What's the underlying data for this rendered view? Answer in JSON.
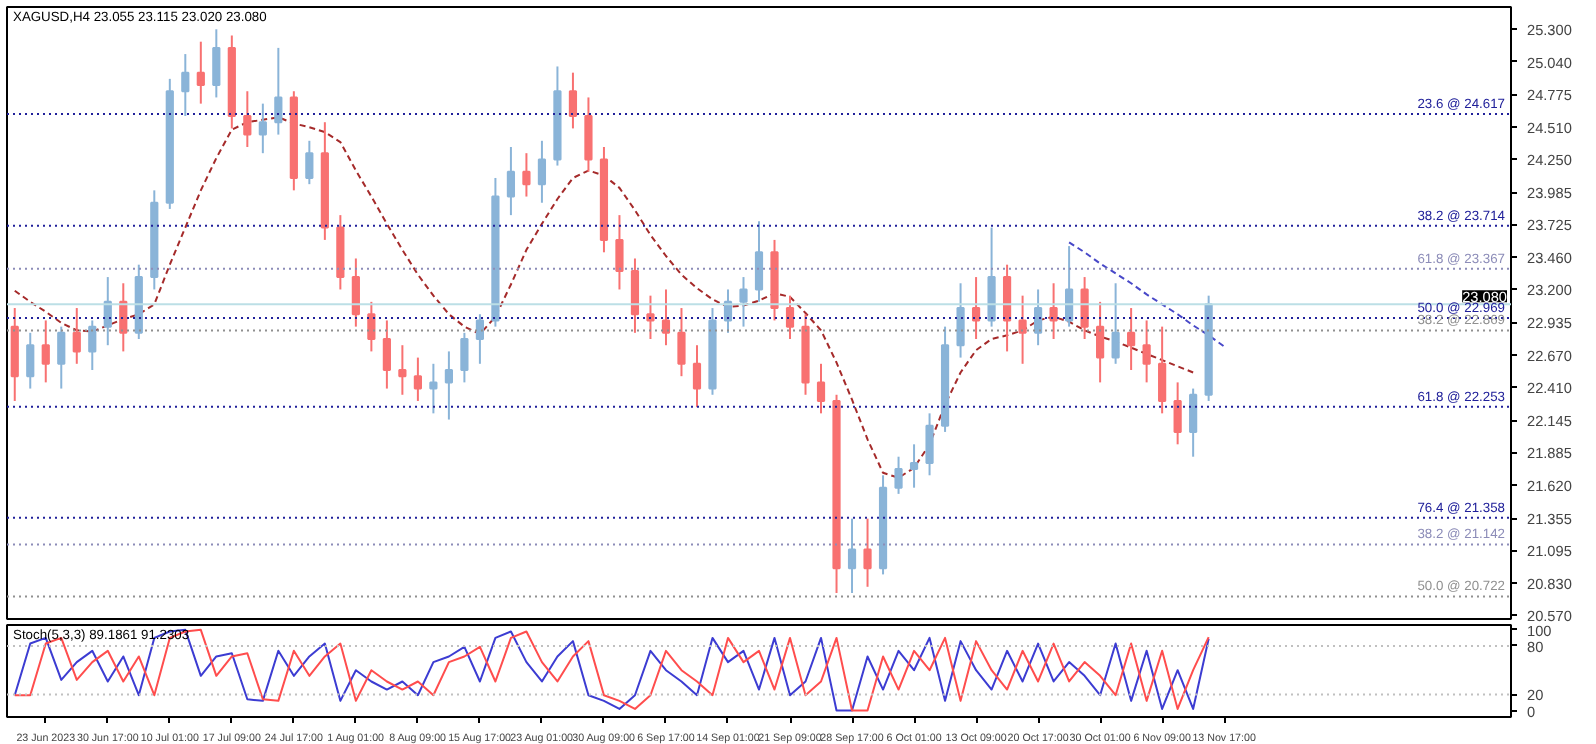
{
  "chart_data": [
    {
      "type": "candlestick",
      "title": "XAGUSD,H4 23.055 23.115 23.020 23.080",
      "categories": [
        null,
        null,
        null,
        null,
        null,
        null,
        null,
        null,
        null,
        null,
        null,
        null,
        null,
        null,
        null,
        null,
        null,
        null,
        null,
        null,
        null,
        null,
        null,
        null,
        null,
        null,
        null,
        null,
        null,
        null,
        null,
        null,
        null,
        null,
        null,
        null,
        null,
        null,
        null,
        null,
        null,
        null,
        null,
        null,
        null,
        null,
        null,
        null,
        null,
        null,
        null,
        null,
        null,
        null,
        null,
        null,
        null,
        null,
        null,
        null,
        null,
        null,
        null,
        null,
        null,
        null,
        null,
        null,
        null,
        null,
        null,
        null,
        null,
        null,
        null,
        null,
        null,
        null,
        null,
        null,
        null,
        null,
        null,
        null,
        null,
        null,
        null,
        null,
        null,
        null,
        null,
        null,
        null,
        null,
        null,
        null,
        null
      ],
      "ohlc": [
        [
          22.9,
          23.05,
          22.3,
          22.5
        ],
        [
          22.5,
          22.85,
          22.4,
          22.75
        ],
        [
          22.75,
          22.95,
          22.45,
          22.6
        ],
        [
          22.6,
          22.9,
          22.4,
          22.85
        ],
        [
          22.85,
          23.05,
          22.6,
          22.7
        ],
        [
          22.7,
          22.95,
          22.55,
          22.9
        ],
        [
          22.9,
          23.3,
          22.75,
          23.1
        ],
        [
          23.1,
          23.25,
          22.7,
          22.85
        ],
        [
          22.85,
          23.4,
          22.8,
          23.3
        ],
        [
          23.3,
          24.0,
          23.2,
          23.9
        ],
        [
          23.9,
          24.9,
          23.85,
          24.8
        ],
        [
          24.8,
          25.1,
          24.6,
          24.95
        ],
        [
          24.95,
          25.2,
          24.7,
          24.85
        ],
        [
          24.85,
          25.3,
          24.75,
          25.15
        ],
        [
          25.15,
          25.25,
          24.5,
          24.6
        ],
        [
          24.6,
          24.8,
          24.35,
          24.45
        ],
        [
          24.45,
          24.7,
          24.3,
          24.55
        ],
        [
          24.55,
          25.15,
          24.45,
          24.75
        ],
        [
          24.75,
          24.8,
          24.0,
          24.1
        ],
        [
          24.1,
          24.4,
          24.05,
          24.3
        ],
        [
          24.3,
          24.55,
          23.6,
          23.7
        ],
        [
          23.7,
          23.8,
          23.2,
          23.3
        ],
        [
          23.3,
          23.45,
          22.9,
          23.0
        ],
        [
          23.0,
          23.1,
          22.7,
          22.8
        ],
        [
          22.8,
          22.95,
          22.4,
          22.55
        ],
        [
          22.55,
          22.75,
          22.35,
          22.5
        ],
        [
          22.5,
          22.65,
          22.3,
          22.4
        ],
        [
          22.4,
          22.6,
          22.2,
          22.45
        ],
        [
          22.45,
          22.7,
          22.15,
          22.55
        ],
        [
          22.55,
          22.85,
          22.45,
          22.8
        ],
        [
          22.8,
          23.0,
          22.6,
          22.95
        ],
        [
          22.95,
          24.1,
          22.9,
          23.95
        ],
        [
          23.95,
          24.35,
          23.8,
          24.15
        ],
        [
          24.15,
          24.3,
          23.95,
          24.05
        ],
        [
          24.05,
          24.4,
          23.9,
          24.25
        ],
        [
          24.25,
          25.0,
          24.2,
          24.8
        ],
        [
          24.8,
          24.95,
          24.5,
          24.6
        ],
        [
          24.6,
          24.75,
          24.15,
          24.25
        ],
        [
          24.25,
          24.35,
          23.5,
          23.6
        ],
        [
          23.6,
          23.8,
          23.2,
          23.35
        ],
        [
          23.35,
          23.45,
          22.85,
          23.0
        ],
        [
          23.0,
          23.15,
          22.8,
          22.95
        ],
        [
          22.95,
          23.2,
          22.75,
          22.85
        ],
        [
          22.85,
          23.05,
          22.5,
          22.6
        ],
        [
          22.6,
          22.75,
          22.25,
          22.4
        ],
        [
          22.4,
          23.05,
          22.35,
          22.95
        ],
        [
          22.95,
          23.2,
          22.85,
          23.1
        ],
        [
          23.1,
          23.3,
          22.9,
          23.2
        ],
        [
          23.2,
          23.75,
          23.1,
          23.5
        ],
        [
          23.5,
          23.6,
          22.95,
          23.05
        ],
        [
          23.05,
          23.15,
          22.8,
          22.9
        ],
        [
          22.9,
          23.0,
          22.35,
          22.45
        ],
        [
          22.45,
          22.6,
          22.2,
          22.3
        ],
        [
          22.3,
          22.35,
          20.75,
          20.95
        ],
        [
          20.95,
          21.35,
          20.75,
          21.1
        ],
        [
          21.1,
          21.35,
          20.8,
          20.95
        ],
        [
          20.95,
          21.7,
          20.9,
          21.6
        ],
        [
          21.6,
          21.85,
          21.55,
          21.75
        ],
        [
          21.75,
          21.95,
          21.6,
          21.8
        ],
        [
          21.8,
          22.2,
          21.7,
          22.1
        ],
        [
          22.1,
          22.9,
          22.05,
          22.75
        ],
        [
          22.75,
          23.25,
          22.65,
          23.05
        ],
        [
          23.05,
          23.3,
          22.8,
          22.95
        ],
        [
          22.95,
          23.7,
          22.9,
          23.3
        ],
        [
          23.3,
          23.4,
          22.7,
          22.95
        ],
        [
          22.95,
          23.15,
          22.6,
          22.85
        ],
        [
          22.85,
          23.2,
          22.75,
          23.05
        ],
        [
          23.05,
          23.25,
          22.8,
          22.95
        ],
        [
          22.95,
          23.55,
          22.9,
          23.2
        ],
        [
          23.2,
          23.3,
          22.8,
          22.9
        ],
        [
          22.9,
          23.1,
          22.45,
          22.65
        ],
        [
          22.65,
          23.25,
          22.6,
          22.85
        ],
        [
          22.85,
          23.05,
          22.55,
          22.75
        ],
        [
          22.75,
          22.95,
          22.45,
          22.6
        ],
        [
          22.6,
          22.9,
          22.2,
          22.3
        ],
        [
          22.3,
          22.45,
          21.95,
          22.05
        ],
        [
          22.05,
          22.4,
          21.85,
          22.35
        ],
        [
          22.35,
          23.15,
          22.3,
          23.08
        ],
        null,
        null,
        null,
        null,
        null,
        null,
        null,
        null,
        null,
        null,
        null,
        null,
        null,
        null,
        null,
        null,
        null,
        null,
        null
      ],
      "colors": [
        "#f87171",
        "#8ab4d8",
        "#f87171",
        "#8ab4d8",
        "#f87171",
        "#8ab4d8",
        "#8ab4d8",
        "#f87171",
        "#8ab4d8",
        "#8ab4d8",
        "#8ab4d8",
        "#8ab4d8",
        "#f87171",
        "#8ab4d8",
        "#f87171",
        "#f87171",
        "#8ab4d8",
        "#8ab4d8",
        "#f87171",
        "#8ab4d8",
        "#f87171",
        "#f87171",
        "#f87171",
        "#f87171",
        "#f87171",
        "#f87171",
        "#f87171",
        "#8ab4d8",
        "#8ab4d8",
        "#8ab4d8",
        "#8ab4d8",
        "#8ab4d8",
        "#8ab4d8",
        "#f87171",
        "#8ab4d8",
        "#8ab4d8",
        "#f87171",
        "#f87171",
        "#f87171",
        "#f87171",
        "#f87171",
        "#f87171",
        "#f87171",
        "#f87171",
        "#f87171",
        "#8ab4d8",
        "#8ab4d8",
        "#8ab4d8",
        "#8ab4d8",
        "#f87171",
        "#f87171",
        "#f87171",
        "#f87171",
        "#f87171",
        "#8ab4d8",
        "#f87171",
        "#8ab4d8",
        "#8ab4d8",
        "#8ab4d8",
        "#8ab4d8",
        "#8ab4d8",
        "#8ab4d8",
        "#f87171",
        "#8ab4d8",
        "#f87171",
        "#f87171",
        "#8ab4d8",
        "#f87171",
        "#8ab4d8",
        "#f87171",
        "#f87171",
        "#8ab4d8",
        "#f87171",
        "#f87171",
        "#f87171",
        "#f87171",
        "#8ab4d8",
        "#8ab4d8",
        null,
        null,
        null,
        null,
        null,
        null,
        null,
        null,
        null,
        null,
        null,
        null,
        null,
        null,
        null,
        null,
        null,
        null,
        null
      ],
      "series": [
        {
          "type": "line",
          "color": "#a52a2a",
          "line_style": "dashed",
          "values": [
            23.19,
            23.1,
            23.02,
            22.93,
            22.87,
            22.86,
            22.91,
            22.96,
            23.0,
            23.08,
            23.4,
            23.7,
            24.0,
            24.26,
            24.49,
            24.55,
            24.57,
            24.59,
            24.54,
            24.51,
            24.47,
            24.39,
            24.16,
            23.95,
            23.73,
            23.52,
            23.32,
            23.15,
            23.0,
            22.9,
            22.84,
            22.98,
            23.24,
            23.52,
            23.73,
            23.93,
            24.1,
            24.16,
            24.12,
            24.02,
            23.84,
            23.64,
            23.47,
            23.32,
            23.21,
            23.12,
            23.06,
            23.07,
            23.11,
            23.17,
            23.14,
            23.01,
            22.87,
            22.61,
            22.31,
            21.99,
            21.72,
            21.68,
            21.76,
            21.95,
            22.27,
            22.53,
            22.71,
            22.8,
            22.83,
            22.87,
            22.95,
            22.98,
            22.94,
            22.87,
            22.82,
            22.78,
            22.73,
            22.68,
            22.63,
            22.58,
            22.53,
            null,
            null,
            null,
            null,
            null,
            null,
            null,
            null,
            null,
            null,
            null,
            null,
            null,
            null,
            null,
            null,
            null,
            null,
            null,
            null
          ]
        },
        {
          "type": "line",
          "color": "#4848c8",
          "line_style": "dashed",
          "values": [
            null,
            null,
            null,
            null,
            null,
            null,
            null,
            null,
            null,
            null,
            null,
            null,
            null,
            null,
            null,
            null,
            null,
            null,
            null,
            null,
            null,
            null,
            null,
            null,
            null,
            null,
            null,
            null,
            null,
            null,
            null,
            null,
            null,
            null,
            null,
            null,
            null,
            null,
            null,
            null,
            null,
            null,
            null,
            null,
            null,
            null,
            null,
            null,
            null,
            null,
            null,
            null,
            null,
            null,
            null,
            null,
            null,
            null,
            null,
            null,
            null,
            null,
            null,
            null,
            null,
            null,
            null,
            null,
            23.58,
            23.5,
            23.41,
            23.33,
            23.25,
            23.16,
            23.08,
            23.0,
            22.91,
            22.83,
            22.74,
            null,
            null,
            null,
            null,
            null,
            null,
            null,
            null,
            null,
            null,
            null,
            null,
            null,
            null,
            null,
            null,
            null,
            null
          ]
        }
      ],
      "ylim": [
        20.54,
        25.48
      ],
      "yticks": [
        {
          "value": 20.57,
          "label": "20.570"
        },
        {
          "value": 20.83,
          "label": "20.830"
        },
        {
          "value": 21.095,
          "label": "21.095"
        },
        {
          "value": 21.355,
          "label": "21.355"
        },
        {
          "value": 21.62,
          "label": "21.620"
        },
        {
          "value": 21.885,
          "label": "21.885"
        },
        {
          "value": 22.145,
          "label": "22.145"
        },
        {
          "value": 22.41,
          "label": "22.410"
        },
        {
          "value": 22.67,
          "label": "22.670"
        },
        {
          "value": 22.935,
          "label": "22.935"
        },
        {
          "value": 23.2,
          "label": "23.200"
        },
        {
          "value": 23.46,
          "label": "23.460"
        },
        {
          "value": 23.725,
          "label": "23.725"
        },
        {
          "value": 23.985,
          "label": "23.985"
        },
        {
          "value": 24.25,
          "label": "24.250"
        },
        {
          "value": 24.51,
          "label": "24.510"
        },
        {
          "value": 24.775,
          "label": "24.775"
        },
        {
          "value": 25.04,
          "label": "25.040"
        },
        {
          "value": 25.3,
          "label": "25.300"
        }
      ],
      "ref_lines": [
        {
          "axis": "y",
          "value": 24.617,
          "label": "23.6 @ 24.617",
          "color": "#20209a",
          "line_style": "dotted"
        },
        {
          "axis": "y",
          "value": 23.714,
          "label": "38.2 @ 23.714",
          "color": "#20209a",
          "line_style": "dotted"
        },
        {
          "axis": "y",
          "value": 23.367,
          "label": "61.8 @ 23.367",
          "color": "#8c8cb8",
          "line_style": "dotted"
        },
        {
          "axis": "y",
          "value": 23.08,
          "label": "23.080",
          "color": "#bcdfe6",
          "line_style": "solid"
        },
        {
          "axis": "y",
          "value": 22.969,
          "label": "50.0 @ 22.969",
          "color": "#20209a",
          "line_style": "dotted"
        },
        {
          "axis": "y",
          "value": 22.869,
          "label": "38.2 @ 22.869",
          "color": "#909090",
          "line_style": "dotted"
        },
        {
          "axis": "y",
          "value": 22.253,
          "label": "61.8 @ 22.253",
          "color": "#20209a",
          "line_style": "dotted"
        },
        {
          "axis": "y",
          "value": 21.358,
          "label": "76.4 @ 21.358",
          "color": "#20209a",
          "line_style": "dotted"
        },
        {
          "axis": "y",
          "value": 21.142,
          "label": "38.2 @ 21.142",
          "color": "#8c8cb8",
          "line_style": "dotted"
        },
        {
          "axis": "y",
          "value": 20.722,
          "label": "50.0 @ 20.722",
          "color": "#909090",
          "line_style": "dotted"
        }
      ],
      "tick_labels": "y"
    },
    {
      "type": "line",
      "title": "Stoch(5,3,3) 89.1861 91.2303",
      "categories": [
        null,
        null,
        "23 Jun 2023",
        null,
        null,
        null,
        "30 Jun 17:00",
        null,
        null,
        null,
        "10 Jul 01:00",
        null,
        null,
        null,
        "17 Jul 09:00",
        null,
        null,
        null,
        "24 Jul 17:00",
        null,
        null,
        null,
        "1 Aug 01:00",
        null,
        null,
        null,
        "8 Aug 09:00",
        null,
        null,
        null,
        "15 Aug 17:00",
        null,
        null,
        null,
        "23 Aug 01:00",
        null,
        null,
        null,
        "30 Aug 09:00",
        null,
        null,
        null,
        "6 Sep 17:00",
        null,
        null,
        null,
        "14 Sep 01:00",
        null,
        null,
        null,
        "21 Sep 09:00",
        null,
        null,
        null,
        "28 Sep 17:00",
        null,
        null,
        null,
        "6 Oct 01:00",
        null,
        null,
        null,
        "13 Oct 09:00",
        null,
        null,
        null,
        "20 Oct 17:00",
        null,
        null,
        null,
        "30 Oct 01:00",
        null,
        null,
        null,
        "6 Nov 09:00",
        null,
        null,
        null,
        "13 Nov 17:00",
        null,
        null,
        null,
        null,
        null,
        null,
        null,
        null,
        null,
        null,
        null,
        null,
        null,
        null,
        null,
        null,
        null,
        null
      ],
      "series": [
        {
          "color": "#3c3cd2",
          "values": [
            19,
            83,
            90,
            38,
            60,
            74,
            36,
            67,
            19,
            90,
            98,
            100,
            43,
            67,
            71,
            14,
            12,
            74,
            43,
            67,
            83,
            12,
            50,
            36,
            26,
            36,
            19,
            60,
            67,
            79,
            36,
            90,
            98,
            60,
            36,
            67,
            86,
            19,
            12,
            2,
            19,
            74,
            50,
            36,
            19,
            90,
            60,
            74,
            26,
            90,
            19,
            36,
            90,
            0,
            0,
            67,
            26,
            74,
            50,
            90,
            12,
            86,
            50,
            26,
            74,
            36,
            83,
            36,
            60,
            43,
            19,
            83,
            12,
            74,
            2,
            50,
            2,
            89,
            null,
            null,
            null,
            null,
            null,
            null,
            null,
            null,
            null,
            null,
            null,
            null,
            null,
            null,
            null,
            null,
            null,
            null,
            null
          ]
        },
        {
          "color": "#ff4d4d",
          "values": [
            19,
            19,
            83,
            90,
            38,
            60,
            74,
            36,
            67,
            19,
            90,
            98,
            100,
            43,
            67,
            71,
            14,
            12,
            74,
            43,
            67,
            83,
            12,
            50,
            36,
            26,
            36,
            19,
            60,
            67,
            79,
            36,
            90,
            98,
            60,
            36,
            67,
            86,
            19,
            12,
            2,
            19,
            74,
            50,
            36,
            19,
            90,
            60,
            74,
            26,
            90,
            19,
            36,
            90,
            0,
            0,
            67,
            26,
            74,
            50,
            90,
            12,
            86,
            50,
            26,
            74,
            36,
            83,
            36,
            60,
            43,
            19,
            83,
            12,
            74,
            2,
            50,
            91,
            null,
            null,
            null,
            null,
            null,
            null,
            null,
            null,
            null,
            null,
            null,
            null,
            null,
            null,
            null,
            null,
            null,
            null,
            null
          ]
        }
      ],
      "ylim": [
        -8,
        106
      ],
      "yticks": [
        0,
        20,
        80,
        100
      ],
      "ref_lines": [
        {
          "axis": "y",
          "value": 80,
          "color": "#c0c0c0",
          "line_style": "dotted"
        },
        {
          "axis": "y",
          "value": 20,
          "color": "#c0c0c0",
          "line_style": "dotted"
        }
      ]
    }
  ]
}
